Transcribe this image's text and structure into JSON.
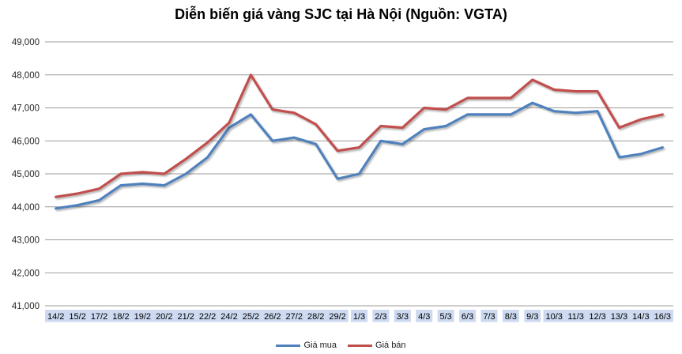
{
  "title": "Diễn biến giá vàng SJC tại Hà Nội (Nguồn: VGTA)",
  "legend": {
    "items": [
      {
        "label": "Giá mua",
        "color": "#4F81BD"
      },
      {
        "label": "Giá bán",
        "color": "#C0504D"
      }
    ]
  },
  "chart_data": {
    "type": "line",
    "title": "Diễn biến giá vàng SJC tại Hà Nội (Nguồn: VGTA)",
    "categories": [
      "14/2",
      "15/2",
      "17/2",
      "18/2",
      "19/2",
      "20/2",
      "21/2",
      "22/2",
      "24/2",
      "25/2",
      "26/2",
      "27/2",
      "28/2",
      "29/2",
      "1/3",
      "2/3",
      "3/3",
      "4/3",
      "5/3",
      "6/3",
      "7/3",
      "8/3",
      "9/3",
      "10/3",
      "11/3",
      "12/3",
      "13/3",
      "14/3",
      "16/3"
    ],
    "series": [
      {
        "name": "Giá mua",
        "color": "#4F81BD",
        "values": [
          43950,
          44050,
          44200,
          44650,
          44700,
          44650,
          45000,
          45500,
          46400,
          46800,
          46000,
          46100,
          45900,
          44850,
          45000,
          46000,
          45900,
          46350,
          46450,
          46800,
          46800,
          46800,
          47150,
          46900,
          46850,
          46900,
          45500,
          45600,
          45800
        ]
      },
      {
        "name": "Giá bán",
        "color": "#C0504D",
        "values": [
          44300,
          44400,
          44550,
          45000,
          45050,
          45000,
          45450,
          45950,
          46550,
          48000,
          46950,
          46850,
          46500,
          45700,
          45800,
          46450,
          46400,
          47000,
          46950,
          47300,
          47300,
          47300,
          47850,
          47550,
          47500,
          47500,
          46400,
          46650,
          46800
        ]
      }
    ],
    "xlabel": "",
    "ylabel": "",
    "ylim": [
      41000,
      49000
    ],
    "ytick_step": 1000,
    "ytick_labels": [
      "41,000",
      "42,000",
      "43,000",
      "44,000",
      "45,000",
      "46,000",
      "47,000",
      "48,000",
      "49,000"
    ],
    "grid": "horizontal",
    "gridline_color": "#9C9C9C",
    "legend_position": "bottom",
    "x_label_bg": "#CCD9F0",
    "x_label_color": "#000000",
    "y_label_color": "#262626"
  }
}
